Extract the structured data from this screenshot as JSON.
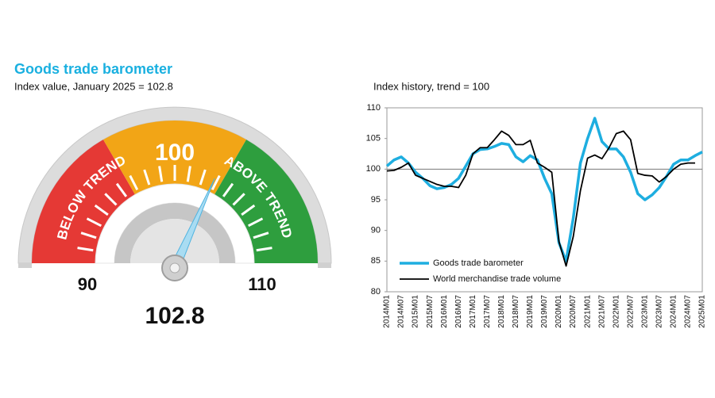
{
  "chart_data": [
    {
      "type": "gauge",
      "title": "Goods trade barometer",
      "subtitle": "Index value, January 2025 = 102.8",
      "value": 102.8,
      "ylim": [
        90,
        110
      ],
      "yticks": [
        90,
        100,
        110
      ],
      "band_labels": [
        "BELOW TREND",
        "ABOVE TREND"
      ],
      "band_colors": [
        "#e53935",
        "#f2a516",
        "#2e9e3e"
      ],
      "needle_color": "#a9dcf2"
    },
    {
      "type": "line",
      "title": "Index history, trend = 100",
      "categories": [
        "2014M01",
        null,
        "2014M07",
        null,
        "2015M01",
        null,
        "2015M07",
        null,
        "2016M01",
        null,
        "2016M07",
        null,
        "2017M01",
        null,
        "2017M07",
        null,
        "2018M01",
        null,
        "2018M07",
        null,
        "2019M01",
        null,
        "2019M07",
        null,
        "2020M01",
        null,
        "2020M07",
        null,
        "2021M01",
        null,
        "2021M07",
        null,
        "2022M01",
        null,
        "2022M07",
        null,
        "2023M01",
        null,
        "2023M07",
        null,
        "2024M01",
        null,
        "2024M07",
        null,
        "2025M01"
      ],
      "series": [
        {
          "name": "Goods trade barometer",
          "color": "#1eaee0",
          "width": 3.5,
          "values": [
            100.5,
            101.5,
            102,
            101,
            99.5,
            98.5,
            97.3,
            96.8,
            97,
            97.5,
            98.5,
            100.5,
            102.5,
            103.2,
            103.3,
            103.7,
            104.2,
            104,
            102,
            101.2,
            102.2,
            101.5,
            98.5,
            96,
            88,
            85,
            92,
            101,
            105,
            108.3,
            104.5,
            103.3,
            103.3,
            102,
            99.5,
            96,
            95,
            95.8,
            97,
            98.8,
            100.8,
            101.5,
            101.5,
            102.2,
            102.8
          ]
        },
        {
          "name": "World merchandise trade volume",
          "color": "#000000",
          "width": 1.8,
          "values": [
            99.7,
            99.8,
            100.3,
            101,
            99,
            98.5,
            98,
            97.5,
            97.2,
            97.2,
            97,
            99,
            102.5,
            103.5,
            103.5,
            104.8,
            106.2,
            105.5,
            104,
            104,
            104.7,
            101,
            100.3,
            99.5,
            88.2,
            84.2,
            89,
            96.5,
            101.8,
            102.3,
            101.7,
            103.5,
            105.8,
            106.2,
            104.8,
            99.3,
            99,
            98.9,
            97.9,
            98.8,
            100,
            100.8,
            101,
            101,
            null
          ]
        }
      ],
      "ylim": [
        80,
        110
      ],
      "yticks": [
        80,
        85,
        90,
        95,
        100,
        105,
        110
      ],
      "reference_line": 100
    }
  ]
}
